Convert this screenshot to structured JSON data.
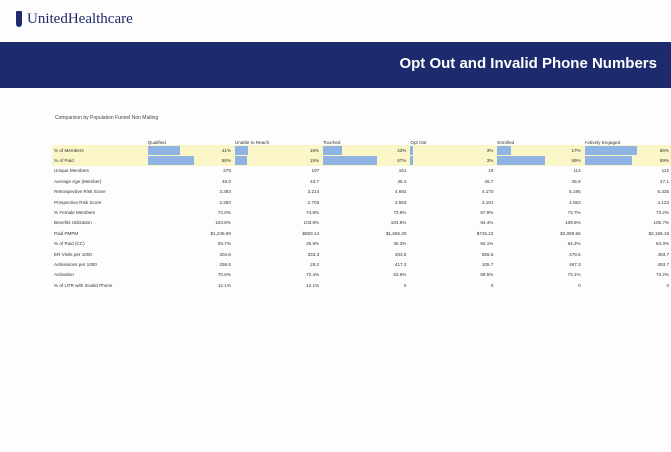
{
  "header": {
    "logo": "UnitedHealthcare",
    "title": "Opt Out and Invalid Phone Numbers"
  },
  "subtitle": "Comparison by Population Funnel Non Mailing",
  "table": {
    "columns": [
      "Qualified",
      "Unable to Reach",
      "Touched",
      "Opt Out",
      "Enrolled",
      "Actively Engaged"
    ],
    "rows": [
      {
        "label": "% of Members",
        "values": [
          "41%",
          "16%",
          "23%",
          "3%",
          "17%",
          "66%"
        ]
      },
      {
        "label": "% of Paid",
        "values": [
          "58%",
          "15%",
          "67%",
          "3%",
          "59%",
          "59%"
        ]
      },
      {
        "label": "Unique Members",
        "values": [
          "279",
          "107",
          "161",
          "19",
          "114",
          "112"
        ]
      },
      {
        "label": "Average Age (Member)",
        "values": [
          "46.0",
          "43.7",
          "46.4",
          "45.7",
          "45.8",
          "47.1"
        ]
      },
      {
        "label": "Retrospective Risk Score",
        "values": [
          "3.393",
          "3.214",
          "4.692",
          "4.170",
          "5.195",
          "5.335"
        ]
      },
      {
        "label": "Prospective Risk Score",
        "values": [
          "3.250",
          "2.703",
          "3.583",
          "3.191",
          "4.063",
          "4.123"
        ]
      },
      {
        "label": "% Female Members",
        "values": [
          "72.0%",
          "74.8%",
          "73.9%",
          "67.9%",
          "73.7%",
          "73.2%"
        ]
      },
      {
        "label": "Benefits Utilization",
        "values": [
          "104.6%",
          "103.9%",
          "104.8%",
          "94.4%",
          "109.6%",
          "105.7%"
        ]
      },
      {
        "label": "Paid PMPM",
        "values": [
          "$1,245.99",
          "$603.14",
          "$1,665.30",
          "$715.22",
          "$2,099.56",
          "$2,159.16"
        ]
      },
      {
        "label": "% of Paid (CC)",
        "values": [
          "93.7%",
          "26.9%",
          "35.3%",
          "92.1%",
          "64.2%",
          "64.3%"
        ]
      },
      {
        "label": "ER Visits per 1000",
        "values": [
          "404.6",
          "333.3",
          "403.6",
          "555.6",
          "479.5",
          "493.7"
        ]
      },
      {
        "label": "Admissions per 1000",
        "values": [
          "258.5",
          "29.2",
          "417.3",
          "105.7",
          "467.3",
          "493.7"
        ]
      },
      {
        "label": "Activation",
        "values": [
          "70.8%",
          "72.4%",
          "63.6%",
          "69.5%",
          "73.1%",
          "73.2%"
        ]
      },
      {
        "label": "% of UTR with Invalid Phone",
        "values": [
          "12.1%",
          "12.1%",
          "0",
          "0",
          "0",
          "0"
        ]
      }
    ]
  }
}
